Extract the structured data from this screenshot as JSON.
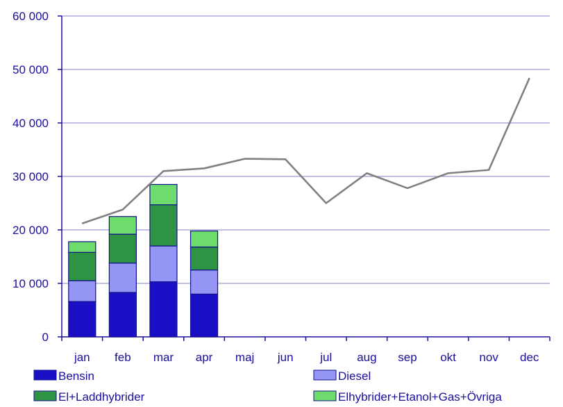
{
  "chart_data": {
    "type": "bar",
    "stacked": true,
    "categories": [
      "jan",
      "feb",
      "mar",
      "apr",
      "maj",
      "jun",
      "jul",
      "aug",
      "sep",
      "okt",
      "nov",
      "dec"
    ],
    "ylim": [
      0,
      60000
    ],
    "yticks": [
      0,
      10000,
      20000,
      30000,
      40000,
      50000,
      60000
    ],
    "ytick_labels": [
      "0",
      "10 000",
      "20 000",
      "30 000",
      "40 000",
      "50 000",
      "60 000"
    ],
    "grid": true,
    "legend_position": "bottom",
    "series": [
      {
        "name": "Bensin",
        "color": "#1a0fc4",
        "values": [
          6600,
          8300,
          10300,
          8000,
          null,
          null,
          null,
          null,
          null,
          null,
          null,
          null
        ]
      },
      {
        "name": "Diesel",
        "color": "#9595f5",
        "values": [
          3900,
          5500,
          6700,
          4500,
          null,
          null,
          null,
          null,
          null,
          null,
          null,
          null
        ]
      },
      {
        "name": "El+Laddhybrider",
        "color": "#2e9444",
        "values": [
          5300,
          5400,
          7700,
          4300,
          null,
          null,
          null,
          null,
          null,
          null,
          null,
          null
        ]
      },
      {
        "name": "Elhybrider+Etanol+Gas+Övriga",
        "color": "#6ddc6d",
        "values": [
          2000,
          3300,
          3800,
          3000,
          null,
          null,
          null,
          null,
          null,
          null,
          null,
          null
        ]
      }
    ],
    "line_series": {
      "color": "#808080",
      "values": [
        21200,
        23800,
        31000,
        31500,
        33300,
        33200,
        25000,
        30600,
        27800,
        30600,
        31200,
        48400
      ]
    },
    "colors": {
      "axis": "#1a0f9a",
      "gridline": "#9a9ad8",
      "bar_outline": "#10108a"
    }
  }
}
